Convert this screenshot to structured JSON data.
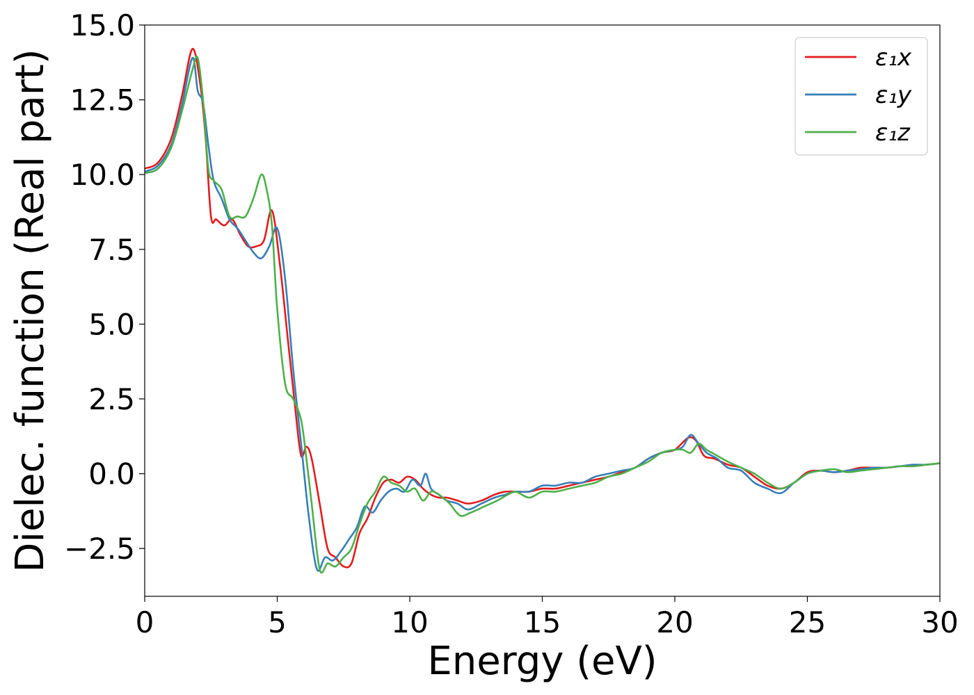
{
  "chart_data": {
    "type": "line",
    "title": "",
    "xlabel": "Energy (eV)",
    "ylabel": "Dielec. function (Real part)",
    "xlim": [
      0,
      30
    ],
    "ylim": [
      -4.1,
      15.0
    ],
    "xticks": [
      0,
      5,
      10,
      15,
      20,
      25,
      30
    ],
    "xtick_labels": [
      "0",
      "5",
      "10",
      "15",
      "20",
      "25",
      "30"
    ],
    "yticks": [
      -2.5,
      0.0,
      2.5,
      5.0,
      7.5,
      10.0,
      12.5,
      15.0
    ],
    "ytick_labels": [
      "−2.5",
      "0.0",
      "2.5",
      "5.0",
      "7.5",
      "10.0",
      "12.5",
      "15.0"
    ],
    "grid": false,
    "legend": {
      "placement": "top-right"
    },
    "series": [
      {
        "name": "ε₁x",
        "color": "#e41a1c",
        "x": [
          0,
          0.5,
          1.0,
          1.4,
          1.8,
          2.1,
          2.3,
          2.5,
          2.7,
          3.0,
          3.3,
          3.6,
          3.9,
          4.2,
          4.5,
          4.8,
          5.1,
          5.4,
          5.7,
          5.9,
          6.1,
          6.3,
          6.6,
          6.9,
          7.2,
          7.5,
          7.8,
          8.1,
          8.4,
          8.7,
          9.0,
          9.3,
          9.6,
          9.9,
          10.2,
          10.5,
          10.8,
          11.1,
          11.4,
          11.8,
          12.2,
          12.7,
          13.2,
          13.6,
          14.0,
          14.5,
          15.0,
          15.5,
          16.0,
          16.5,
          17.0,
          17.5,
          18.0,
          18.5,
          19.0,
          19.5,
          20.0,
          20.5,
          20.8,
          21.1,
          21.5,
          22.0,
          22.5,
          23.0,
          23.5,
          24.0,
          24.5,
          25.0,
          25.5,
          26.0,
          26.5,
          27.0,
          27.5,
          28.0,
          28.5,
          29.0,
          29.5,
          30.0
        ],
        "y": [
          10.2,
          10.4,
          11.2,
          12.6,
          14.2,
          13.0,
          11.2,
          8.6,
          8.5,
          8.3,
          8.5,
          8.0,
          7.6,
          7.6,
          7.8,
          8.8,
          7.0,
          4.5,
          2.0,
          0.6,
          0.9,
          0.5,
          -1.0,
          -2.5,
          -2.8,
          -3.1,
          -3.0,
          -2.0,
          -1.5,
          -0.8,
          -0.3,
          -0.2,
          -0.3,
          -0.1,
          -0.2,
          -0.5,
          -0.7,
          -0.8,
          -0.8,
          -0.9,
          -1.0,
          -0.9,
          -0.7,
          -0.6,
          -0.6,
          -0.6,
          -0.5,
          -0.5,
          -0.4,
          -0.3,
          -0.2,
          -0.1,
          0.05,
          0.2,
          0.5,
          0.7,
          0.8,
          1.2,
          1.1,
          0.6,
          0.5,
          0.3,
          0.2,
          -0.1,
          -0.4,
          -0.5,
          -0.3,
          0.05,
          0.1,
          0.05,
          0.1,
          0.2,
          0.2,
          0.2,
          0.25,
          0.25,
          0.3,
          0.35
        ]
      },
      {
        "name": "ε₁y",
        "color": "#377eb8",
        "x": [
          0,
          0.5,
          1.0,
          1.4,
          1.8,
          2.0,
          2.2,
          2.4,
          2.6,
          2.9,
          3.2,
          3.5,
          3.8,
          4.1,
          4.4,
          4.7,
          5.0,
          5.3,
          5.6,
          5.9,
          6.2,
          6.5,
          6.8,
          7.1,
          7.4,
          7.7,
          8.0,
          8.3,
          8.6,
          8.9,
          9.2,
          9.5,
          9.8,
          10.1,
          10.4,
          10.6,
          10.8,
          11.1,
          11.4,
          11.8,
          12.2,
          12.7,
          13.2,
          13.6,
          14.0,
          14.5,
          15.0,
          15.5,
          16.0,
          16.5,
          17.0,
          17.5,
          18.0,
          18.5,
          19.0,
          19.5,
          20.0,
          20.3,
          20.6,
          20.9,
          21.2,
          21.6,
          22.0,
          22.5,
          23.0,
          23.5,
          24.0,
          24.5,
          25.0,
          25.5,
          26.0,
          26.5,
          27.0,
          27.5,
          28.0,
          28.5,
          29.0,
          29.5,
          30.0
        ],
        "y": [
          10.1,
          10.3,
          11.0,
          12.3,
          13.9,
          12.8,
          12.4,
          11.0,
          9.8,
          9.2,
          8.5,
          8.2,
          7.8,
          7.4,
          7.2,
          7.6,
          8.2,
          6.5,
          3.5,
          1.0,
          -1.5,
          -3.2,
          -2.8,
          -2.9,
          -2.6,
          -2.2,
          -1.8,
          -1.1,
          -1.3,
          -0.9,
          -0.6,
          -0.5,
          -0.6,
          -0.2,
          -0.4,
          0.0,
          -0.5,
          -0.7,
          -0.9,
          -1.0,
          -1.2,
          -1.0,
          -0.8,
          -0.7,
          -0.6,
          -0.6,
          -0.4,
          -0.4,
          -0.3,
          -0.3,
          -0.1,
          0.0,
          0.1,
          0.2,
          0.5,
          0.7,
          0.8,
          0.9,
          1.3,
          1.0,
          0.7,
          0.5,
          0.2,
          0.1,
          -0.3,
          -0.5,
          -0.65,
          -0.3,
          0.0,
          0.1,
          0.05,
          0.1,
          0.15,
          0.2,
          0.2,
          0.25,
          0.3,
          0.3,
          0.35
        ]
      },
      {
        "name": "ε₁z",
        "color": "#4daf4a",
        "x": [
          0,
          0.5,
          1.0,
          1.4,
          1.8,
          2.0,
          2.2,
          2.4,
          2.6,
          2.9,
          3.2,
          3.5,
          3.8,
          4.1,
          4.4,
          4.6,
          4.8,
          5.0,
          5.3,
          5.6,
          5.9,
          6.1,
          6.3,
          6.6,
          6.9,
          7.2,
          7.5,
          7.8,
          8.1,
          8.4,
          8.7,
          9.0,
          9.3,
          9.6,
          9.9,
          10.2,
          10.5,
          10.8,
          11.1,
          11.5,
          11.9,
          12.3,
          12.8,
          13.3,
          13.7,
          14.0,
          14.5,
          15.0,
          15.5,
          16.0,
          16.5,
          17.0,
          17.5,
          18.0,
          18.5,
          19.0,
          19.5,
          20.0,
          20.3,
          20.6,
          20.9,
          21.2,
          21.6,
          22.0,
          22.5,
          23.0,
          23.5,
          24.0,
          24.5,
          25.0,
          25.5,
          26.0,
          26.5,
          27.0,
          27.5,
          28.0,
          28.5,
          29.0,
          29.5,
          30.0
        ],
        "y": [
          10.05,
          10.2,
          10.9,
          12.1,
          13.5,
          13.9,
          12.5,
          10.2,
          9.8,
          9.5,
          8.6,
          8.6,
          8.6,
          9.2,
          10.0,
          9.5,
          8.3,
          5.5,
          3.0,
          2.5,
          1.8,
          0.5,
          -1.0,
          -3.2,
          -3.0,
          -3.1,
          -2.8,
          -2.5,
          -1.7,
          -1.0,
          -0.6,
          -0.1,
          -0.3,
          -0.4,
          -0.6,
          -0.5,
          -0.9,
          -0.6,
          -0.7,
          -1.0,
          -1.4,
          -1.3,
          -1.1,
          -0.9,
          -0.7,
          -0.6,
          -0.8,
          -0.6,
          -0.6,
          -0.5,
          -0.4,
          -0.3,
          -0.1,
          0.0,
          0.2,
          0.4,
          0.7,
          0.8,
          0.8,
          0.7,
          1.0,
          0.8,
          0.6,
          0.4,
          0.2,
          0.0,
          -0.3,
          -0.5,
          -0.3,
          0.0,
          0.1,
          0.15,
          0.05,
          0.1,
          0.15,
          0.2,
          0.25,
          0.25,
          0.3,
          0.35
        ]
      }
    ]
  }
}
